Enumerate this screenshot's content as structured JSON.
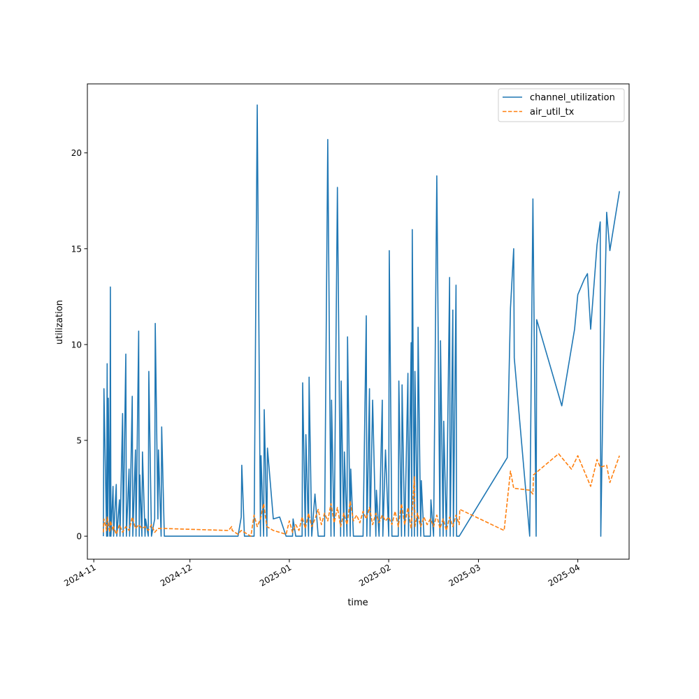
{
  "chart_data": {
    "type": "line",
    "title": "",
    "xlabel": "time",
    "ylabel": "utilization",
    "x_axis_type": "date",
    "xlim": [
      "2024-10-30",
      "2025-04-17"
    ],
    "ylim": [
      -1.2,
      23.6
    ],
    "x_ticks": [
      "2024-11-01",
      "2024-12-01",
      "2025-01-01",
      "2025-02-01",
      "2025-03-01",
      "2025-04-01"
    ],
    "x_tick_labels": [
      "2024-11",
      "2024-12",
      "2025-01",
      "2025-02",
      "2025-03",
      "2025-04"
    ],
    "y_ticks": [
      0,
      5,
      10,
      15,
      20
    ],
    "y_tick_labels": [
      "0",
      "5",
      "10",
      "15",
      "20"
    ],
    "grid": false,
    "legend_position": "upper right",
    "series": [
      {
        "name": "channel_utilization",
        "color": "#1f77b4",
        "line_style": "solid",
        "points": [
          [
            "2024-11-04",
            0
          ],
          [
            "2024-11-04",
            7.7
          ],
          [
            "2024-11-05",
            0
          ],
          [
            "2024-11-05",
            9.0
          ],
          [
            "2024-11-05",
            0
          ],
          [
            "2024-11-05",
            7.2
          ],
          [
            "2024-11-06",
            0
          ],
          [
            "2024-11-06",
            13.0
          ],
          [
            "2024-11-06",
            0
          ],
          [
            "2024-11-07",
            2.6
          ],
          [
            "2024-11-07",
            0
          ],
          [
            "2024-11-08",
            2.7
          ],
          [
            "2024-11-08",
            0
          ],
          [
            "2024-11-09",
            1.9
          ],
          [
            "2024-11-09",
            0
          ],
          [
            "2024-11-10",
            6.4
          ],
          [
            "2024-11-10",
            0
          ],
          [
            "2024-11-11",
            9.5
          ],
          [
            "2024-11-11",
            0
          ],
          [
            "2024-11-12",
            3.5
          ],
          [
            "2024-11-12",
            0
          ],
          [
            "2024-11-13",
            7.3
          ],
          [
            "2024-11-13",
            0
          ],
          [
            "2024-11-14",
            4.5
          ],
          [
            "2024-11-14",
            0
          ],
          [
            "2024-11-15",
            10.7
          ],
          [
            "2024-11-15",
            0
          ],
          [
            "2024-11-15",
            3.2
          ],
          [
            "2024-11-16",
            0
          ],
          [
            "2024-11-16",
            4.4
          ],
          [
            "2024-11-17",
            0
          ],
          [
            "2024-11-17",
            0.9
          ],
          [
            "2024-11-18",
            0
          ],
          [
            "2024-11-18",
            8.6
          ],
          [
            "2024-11-19",
            0
          ],
          [
            "2024-11-20",
            0.9
          ],
          [
            "2024-11-20",
            11.1
          ],
          [
            "2024-11-21",
            0.9
          ],
          [
            "2024-11-21",
            4.5
          ],
          [
            "2024-11-22",
            0
          ],
          [
            "2024-11-22",
            5.7
          ],
          [
            "2024-11-23",
            0
          ],
          [
            "2024-12-16",
            0
          ],
          [
            "2024-12-17",
            1.0
          ],
          [
            "2024-12-17",
            3.7
          ],
          [
            "2024-12-18",
            0
          ],
          [
            "2024-12-19",
            0
          ],
          [
            "2024-12-21",
            0
          ],
          [
            "2024-12-22",
            22.5
          ],
          [
            "2024-12-23",
            0
          ],
          [
            "2024-12-23",
            4.2
          ],
          [
            "2024-12-24",
            0
          ],
          [
            "2024-12-24",
            6.6
          ],
          [
            "2024-12-25",
            0
          ],
          [
            "2024-12-25",
            4.6
          ],
          [
            "2024-12-27",
            0.9
          ],
          [
            "2024-12-29",
            1.0
          ],
          [
            "2024-12-31",
            0
          ],
          [
            "2025-01-02",
            0
          ],
          [
            "2025-01-02",
            0.9
          ],
          [
            "2025-01-03",
            0
          ],
          [
            "2025-01-05",
            0
          ],
          [
            "2025-01-05",
            8.0
          ],
          [
            "2025-01-06",
            0
          ],
          [
            "2025-01-06",
            5.3
          ],
          [
            "2025-01-07",
            0
          ],
          [
            "2025-01-07",
            8.3
          ],
          [
            "2025-01-08",
            0
          ],
          [
            "2025-01-09",
            2.2
          ],
          [
            "2025-01-10",
            0
          ],
          [
            "2025-01-12",
            0
          ],
          [
            "2025-01-13",
            20.7
          ],
          [
            "2025-01-14",
            0
          ],
          [
            "2025-01-14",
            7.1
          ],
          [
            "2025-01-15",
            0
          ],
          [
            "2025-01-16",
            18.2
          ],
          [
            "2025-01-17",
            0
          ],
          [
            "2025-01-17",
            8.1
          ],
          [
            "2025-01-18",
            0
          ],
          [
            "2025-01-18",
            4.4
          ],
          [
            "2025-01-19",
            0
          ],
          [
            "2025-01-19",
            10.4
          ],
          [
            "2025-01-20",
            0
          ],
          [
            "2025-01-20",
            3.5
          ],
          [
            "2025-01-21",
            0
          ],
          [
            "2025-01-24",
            0
          ],
          [
            "2025-01-25",
            11.5
          ],
          [
            "2025-01-25",
            0
          ],
          [
            "2025-01-26",
            7.7
          ],
          [
            "2025-01-26",
            0
          ],
          [
            "2025-01-27",
            7.1
          ],
          [
            "2025-01-28",
            0
          ],
          [
            "2025-01-28",
            2.4
          ],
          [
            "2025-01-29",
            0
          ],
          [
            "2025-01-30",
            7.1
          ],
          [
            "2025-01-30",
            0
          ],
          [
            "2025-01-31",
            4.5
          ],
          [
            "2025-02-01",
            0
          ],
          [
            "2025-02-01",
            14.9
          ],
          [
            "2025-02-02",
            0
          ],
          [
            "2025-02-04",
            0
          ],
          [
            "2025-02-04",
            8.1
          ],
          [
            "2025-02-05",
            0
          ],
          [
            "2025-02-05",
            7.9
          ],
          [
            "2025-02-06",
            0
          ],
          [
            "2025-02-07",
            8.5
          ],
          [
            "2025-02-07",
            0
          ],
          [
            "2025-02-08",
            10.1
          ],
          [
            "2025-02-08",
            0
          ],
          [
            "2025-02-08",
            16.0
          ],
          [
            "2025-02-09",
            0
          ],
          [
            "2025-02-09",
            8.6
          ],
          [
            "2025-02-10",
            0
          ],
          [
            "2025-02-10",
            10.9
          ],
          [
            "2025-02-11",
            0
          ],
          [
            "2025-02-11",
            2.9
          ],
          [
            "2025-02-12",
            0
          ],
          [
            "2025-02-14",
            0
          ],
          [
            "2025-02-14",
            1.9
          ],
          [
            "2025-02-15",
            0
          ],
          [
            "2025-02-16",
            18.8
          ],
          [
            "2025-02-17",
            0
          ],
          [
            "2025-02-17",
            10.2
          ],
          [
            "2025-02-18",
            0
          ],
          [
            "2025-02-18",
            6.0
          ],
          [
            "2025-02-19",
            0
          ],
          [
            "2025-02-20",
            13.5
          ],
          [
            "2025-02-20",
            0
          ],
          [
            "2025-02-21",
            11.8
          ],
          [
            "2025-02-21",
            0
          ],
          [
            "2025-02-22",
            13.1
          ],
          [
            "2025-02-22",
            0
          ],
          [
            "2025-02-23",
            0
          ],
          [
            "2025-03-10",
            4.1
          ],
          [
            "2025-03-11",
            11.9
          ],
          [
            "2025-03-12",
            15.0
          ],
          [
            "2025-03-12",
            9.3
          ],
          [
            "2025-03-17",
            0
          ],
          [
            "2025-03-18",
            17.6
          ],
          [
            "2025-03-19",
            0
          ],
          [
            "2025-03-19",
            11.3
          ],
          [
            "2025-03-27",
            6.8
          ],
          [
            "2025-03-31",
            10.8
          ],
          [
            "2025-04-01",
            12.6
          ],
          [
            "2025-04-03",
            13.4
          ],
          [
            "2025-04-04",
            13.7
          ],
          [
            "2025-04-05",
            10.8
          ],
          [
            "2025-04-07",
            15.2
          ],
          [
            "2025-04-08",
            16.4
          ],
          [
            "2025-04-08",
            0
          ],
          [
            "2025-04-09",
            9.0
          ],
          [
            "2025-04-10",
            16.9
          ],
          [
            "2025-04-11",
            14.9
          ],
          [
            "2025-04-14",
            18.0
          ]
        ]
      },
      {
        "name": "air_util_tx",
        "color": "#ff7f0e",
        "line_style": "dashed",
        "points": [
          [
            "2024-11-04",
            0.2
          ],
          [
            "2024-11-04",
            0.9
          ],
          [
            "2024-11-05",
            0.3
          ],
          [
            "2024-11-05",
            1.0
          ],
          [
            "2024-11-06",
            0.2
          ],
          [
            "2024-11-06",
            0.8
          ],
          [
            "2024-11-07",
            0.3
          ],
          [
            "2024-11-07",
            0.5
          ],
          [
            "2024-11-08",
            0.1
          ],
          [
            "2024-11-09",
            0.6
          ],
          [
            "2024-11-10",
            0.2
          ],
          [
            "2024-11-11",
            0.5
          ],
          [
            "2024-11-12",
            0.3
          ],
          [
            "2024-11-13",
            1.0
          ],
          [
            "2024-11-14",
            0.4
          ],
          [
            "2024-11-15",
            0.6
          ],
          [
            "2024-11-16",
            0.4
          ],
          [
            "2024-11-17",
            0.5
          ],
          [
            "2024-11-18",
            0.3
          ],
          [
            "2024-11-19",
            0.6
          ],
          [
            "2024-11-20",
            0.2
          ],
          [
            "2024-11-21",
            0.4
          ],
          [
            "2024-11-22",
            0.4
          ],
          [
            "2024-11-23",
            0.4
          ],
          [
            "2024-12-13",
            0.3
          ],
          [
            "2024-12-14",
            0.5
          ],
          [
            "2024-12-14",
            0.3
          ],
          [
            "2024-12-16",
            0.1
          ],
          [
            "2024-12-17",
            0.3
          ],
          [
            "2024-12-18",
            0.2
          ],
          [
            "2024-12-20",
            0.0
          ],
          [
            "2024-12-21",
            1.1
          ],
          [
            "2024-12-22",
            0.5
          ],
          [
            "2024-12-23",
            0.9
          ],
          [
            "2024-12-24",
            1.7
          ],
          [
            "2024-12-25",
            0.5
          ],
          [
            "2024-12-27",
            0.3
          ],
          [
            "2024-12-29",
            0.2
          ],
          [
            "2024-12-31",
            0.1
          ],
          [
            "2025-01-01",
            0.8
          ],
          [
            "2025-01-02",
            0.2
          ],
          [
            "2025-01-03",
            0.6
          ],
          [
            "2025-01-04",
            0.3
          ],
          [
            "2025-01-05",
            1.0
          ],
          [
            "2025-01-06",
            0.4
          ],
          [
            "2025-01-07",
            1.2
          ],
          [
            "2025-01-08",
            0.5
          ],
          [
            "2025-01-09",
            0.9
          ],
          [
            "2025-01-10",
            1.4
          ],
          [
            "2025-01-11",
            0.6
          ],
          [
            "2025-01-12",
            1.2
          ],
          [
            "2025-01-13",
            0.8
          ],
          [
            "2025-01-14",
            1.7
          ],
          [
            "2025-01-15",
            0.7
          ],
          [
            "2025-01-16",
            1.5
          ],
          [
            "2025-01-17",
            0.5
          ],
          [
            "2025-01-18",
            1.2
          ],
          [
            "2025-01-19",
            0.6
          ],
          [
            "2025-01-20",
            1.8
          ],
          [
            "2025-01-21",
            0.8
          ],
          [
            "2025-01-22",
            1.1
          ],
          [
            "2025-01-23",
            0.7
          ],
          [
            "2025-01-24",
            1.3
          ],
          [
            "2025-01-25",
            0.9
          ],
          [
            "2025-01-26",
            1.5
          ],
          [
            "2025-01-27",
            0.6
          ],
          [
            "2025-01-28",
            1.2
          ],
          [
            "2025-01-29",
            0.7
          ],
          [
            "2025-01-30",
            1.1
          ],
          [
            "2025-01-31",
            0.8
          ],
          [
            "2025-02-01",
            1.0
          ],
          [
            "2025-02-02",
            0.6
          ],
          [
            "2025-02-03",
            1.3
          ],
          [
            "2025-02-04",
            0.5
          ],
          [
            "2025-02-05",
            1.7
          ],
          [
            "2025-02-06",
            0.6
          ],
          [
            "2025-02-07",
            1.5
          ],
          [
            "2025-02-08",
            0.4
          ],
          [
            "2025-02-09",
            3.1
          ],
          [
            "2025-02-09",
            0.5
          ],
          [
            "2025-02-10",
            1.2
          ],
          [
            "2025-02-11",
            0.5
          ],
          [
            "2025-02-12",
            1.0
          ],
          [
            "2025-02-13",
            0.6
          ],
          [
            "2025-02-14",
            0.9
          ],
          [
            "2025-02-15",
            0.5
          ],
          [
            "2025-02-16",
            1.1
          ],
          [
            "2025-02-17",
            0.4
          ],
          [
            "2025-02-18",
            0.9
          ],
          [
            "2025-02-19",
            0.3
          ],
          [
            "2025-02-20",
            1.0
          ],
          [
            "2025-02-21",
            0.5
          ],
          [
            "2025-02-22",
            1.1
          ],
          [
            "2025-02-23",
            0.6
          ],
          [
            "2025-02-23",
            1.4
          ],
          [
            "2025-03-09",
            0.3
          ],
          [
            "2025-03-11",
            3.4
          ],
          [
            "2025-03-12",
            2.5
          ],
          [
            "2025-03-17",
            2.4
          ],
          [
            "2025-03-18",
            2.2
          ],
          [
            "2025-03-18",
            3.2
          ],
          [
            "2025-03-26",
            4.3
          ],
          [
            "2025-03-30",
            3.5
          ],
          [
            "2025-04-01",
            4.2
          ],
          [
            "2025-04-05",
            2.6
          ],
          [
            "2025-04-07",
            4.0
          ],
          [
            "2025-04-08",
            3.6
          ],
          [
            "2025-04-10",
            3.7
          ],
          [
            "2025-04-11",
            2.8
          ],
          [
            "2025-04-14",
            4.2
          ]
        ]
      }
    ]
  }
}
